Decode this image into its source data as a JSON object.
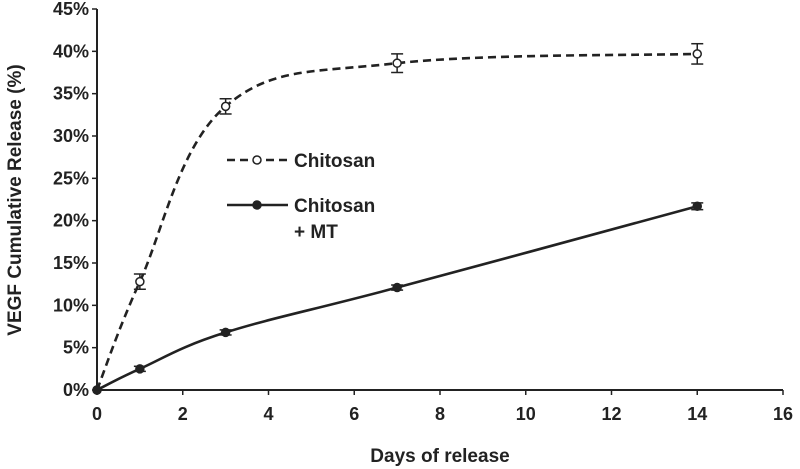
{
  "chart_data": {
    "type": "line",
    "xlabel": "Days of release",
    "ylabel": "VEGF Cumulative Release (%)",
    "xlim": [
      0,
      16
    ],
    "ylim": [
      0,
      45
    ],
    "x_ticks": [
      "0",
      "2",
      "4",
      "6",
      "8",
      "10",
      "12",
      "14",
      "16"
    ],
    "y_ticks": [
      "0%",
      "5%",
      "10%",
      "15%",
      "20%",
      "25%",
      "30%",
      "35%",
      "40%",
      "45%"
    ],
    "grid": false,
    "legend_position": "center-left",
    "series": [
      {
        "name": "Chitosan",
        "line_style": "dashed",
        "marker": "open-circle",
        "x": [
          0,
          1,
          3,
          7,
          14
        ],
        "y": [
          0,
          12.8,
          33.5,
          38.6,
          39.7
        ],
        "error": [
          0,
          0.9,
          0.9,
          1.1,
          1.2
        ]
      },
      {
        "name": "Chitosan\n+ MT",
        "line_style": "solid",
        "marker": "filled-circle",
        "x": [
          0,
          1,
          3,
          7,
          14
        ],
        "y": [
          0,
          2.5,
          6.8,
          12.1,
          21.7
        ],
        "error": [
          0,
          0.3,
          0.3,
          0.3,
          0.4
        ]
      }
    ],
    "colors": {
      "line": "#222222",
      "open_marker_fill": "#ffffff"
    }
  }
}
